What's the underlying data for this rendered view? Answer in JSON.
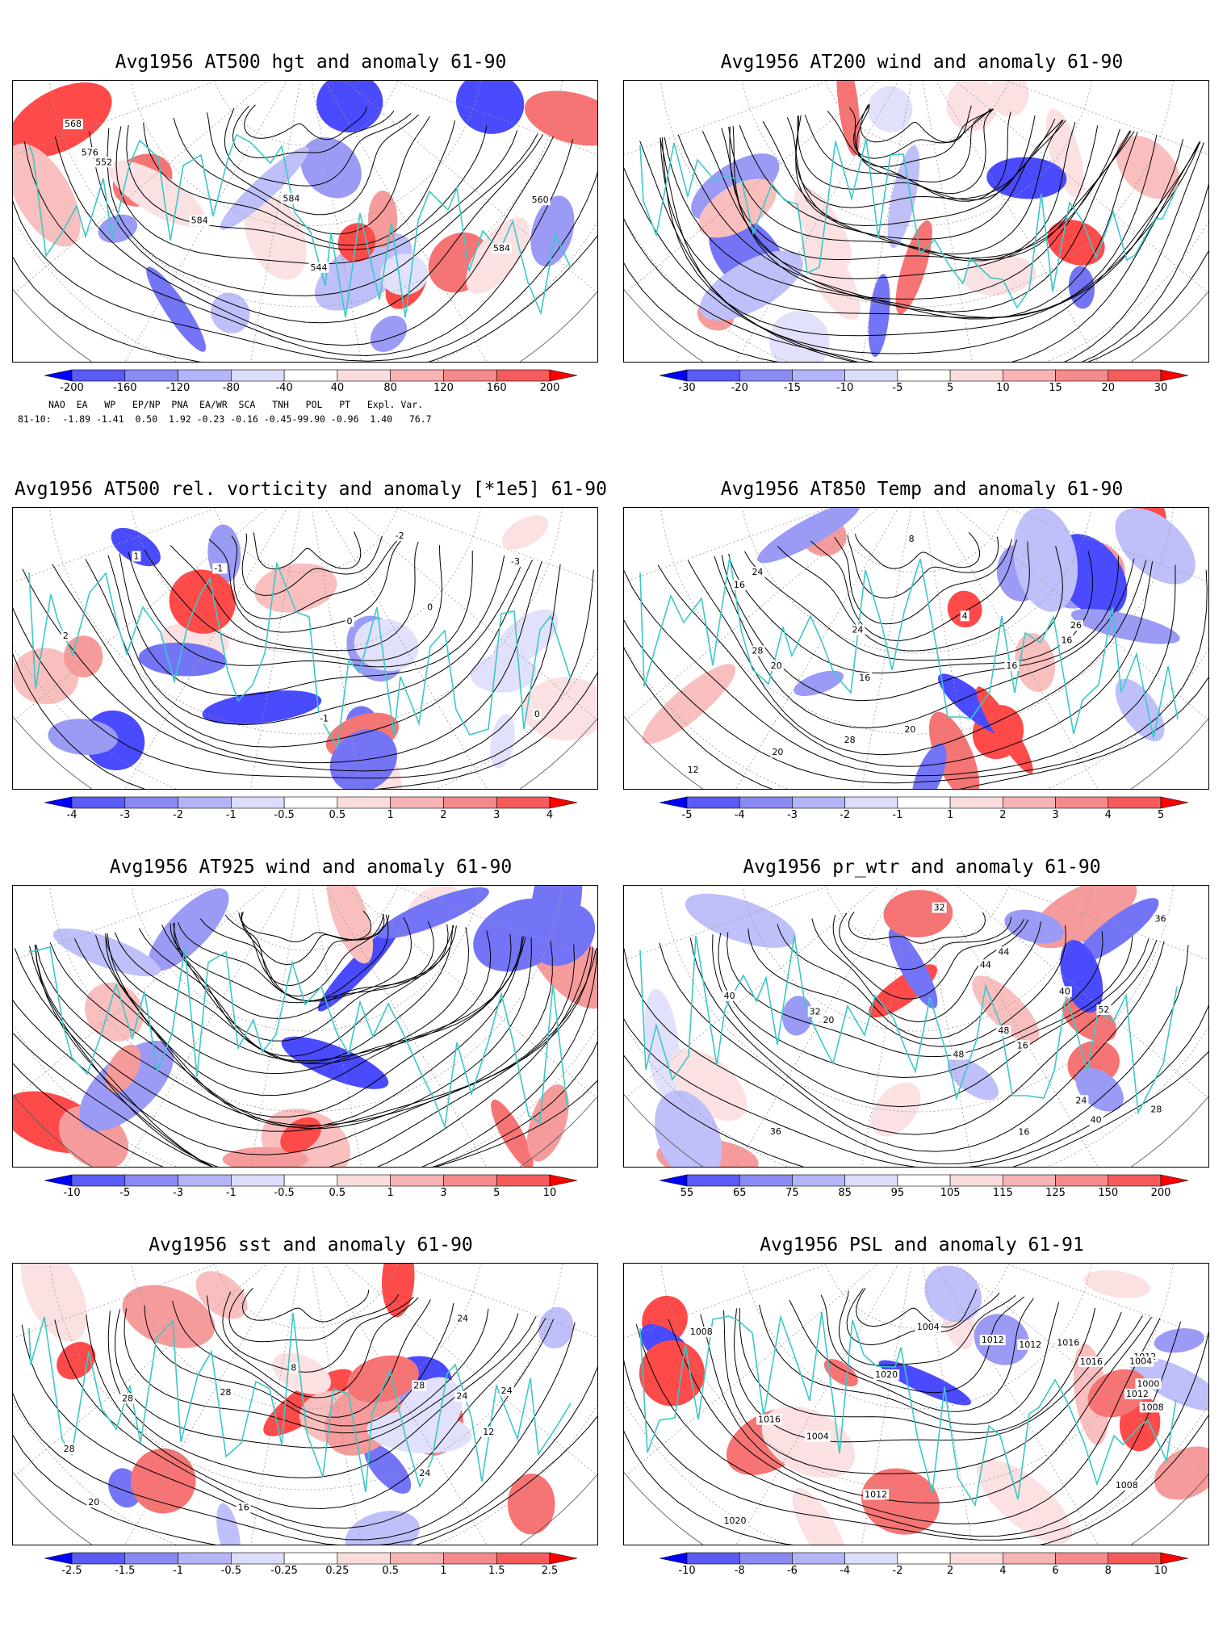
{
  "palette": {
    "blue": [
      "#2a2aff",
      "#5b5bf5",
      "#8a8af5",
      "#b4b4f8",
      "#dcdcfb"
    ],
    "red": [
      "#fbdcdc",
      "#f8b4b4",
      "#f58a8a",
      "#f55b5b",
      "#ff2a2a"
    ],
    "coast": "#3cc8c8",
    "contour": "#000000",
    "grid": "#9a9a9a"
  },
  "panels": [
    {
      "title": "Avg1956 AT500 hgt and anomaly 61-90",
      "kind": "contour",
      "colorbar": [
        "-200",
        "-160",
        "-120",
        "-80",
        "-40",
        "40",
        "80",
        "120",
        "160",
        "200"
      ],
      "contour_labels": [
        "544",
        "552",
        "560",
        "568",
        "576",
        "584",
        "584",
        "584"
      ],
      "index_table": {
        "header": [
          "NAO",
          "EA",
          "WP",
          "EP/NP",
          "PNA",
          "EA/WR",
          "SCA",
          "TNH",
          "POL",
          "PT",
          "Expl. Var."
        ],
        "row_label": "81-10:",
        "values": [
          "-1.89",
          "-1.41",
          "0.50",
          "1.92",
          "-0.23",
          "-0.16",
          "-0.45",
          "-99.90",
          "-0.96",
          "1.40",
          "76.7"
        ]
      }
    },
    {
      "title": "Avg1956 AT200 wind and anomaly 61-90",
      "kind": "streamline",
      "colorbar": [
        "-30",
        "-20",
        "-15",
        "-10",
        "-5",
        "5",
        "10",
        "15",
        "20",
        "30"
      ],
      "contour_labels": []
    },
    {
      "title": "Avg1956 AT500 rel. vorticity and anomaly [*1e5] 61-90",
      "kind": "contour",
      "colorbar": [
        "-4",
        "-3",
        "-2",
        "-1",
        "-0.5",
        "0.5",
        "1",
        "2",
        "3",
        "4"
      ],
      "contour_labels": [
        "0",
        "0",
        "-1",
        "-2",
        "1",
        "-3",
        "2",
        "-1",
        "0"
      ]
    },
    {
      "title": "Avg1956 AT850 Temp and anomaly 61-90",
      "kind": "contour",
      "colorbar": [
        "-5",
        "-4",
        "-3",
        "-2",
        "-1",
        "1",
        "2",
        "3",
        "4",
        "5"
      ],
      "contour_labels": [
        "20",
        "16",
        "16",
        "4",
        "8",
        "12",
        "20",
        "28",
        "24",
        "28",
        "24",
        "20",
        "16",
        "26",
        "16"
      ]
    },
    {
      "title": "Avg1956 AT925 wind and anomaly 61-90",
      "kind": "streamline",
      "colorbar": [
        "-10",
        "-5",
        "-3",
        "-1",
        "-0.5",
        "0.5",
        "1",
        "3",
        "5",
        "10"
      ],
      "contour_labels": []
    },
    {
      "title": "Avg1956 pr_wtr and anomaly 61-90",
      "kind": "contour",
      "colorbar": [
        "55",
        "65",
        "75",
        "85",
        "95",
        "105",
        "115",
        "125",
        "150",
        "200"
      ],
      "contour_labels": [
        "48",
        "40",
        "36",
        "32",
        "24",
        "16",
        "20",
        "44",
        "40",
        "36",
        "32",
        "16",
        "48",
        "52",
        "40",
        "44",
        "28"
      ]
    },
    {
      "title": "Avg1956 sst and anomaly 61-90",
      "kind": "contour",
      "colorbar": [
        "-2.5",
        "-1.5",
        "-1",
        "-0.5",
        "-0.25",
        "0.25",
        "0.5",
        "1",
        "1.5",
        "2.5"
      ],
      "contour_labels": [
        "24",
        "28",
        "28",
        "20",
        "16",
        "12",
        "8",
        "24",
        "28",
        "28",
        "24",
        "24"
      ]
    },
    {
      "title": "Avg1956 PSL and anomaly 61-91",
      "kind": "contour",
      "colorbar": [
        "-10",
        "-8",
        "-6",
        "-4",
        "-2",
        "2",
        "4",
        "6",
        "8",
        "10"
      ],
      "contour_labels": [
        "1012",
        "1016",
        "1004",
        "1008",
        "1016",
        "1012",
        "1020",
        "1020",
        "1016",
        "1012",
        "1008",
        "1004",
        "1000",
        "1012",
        "1008",
        "1012",
        "1004"
      ]
    }
  ]
}
